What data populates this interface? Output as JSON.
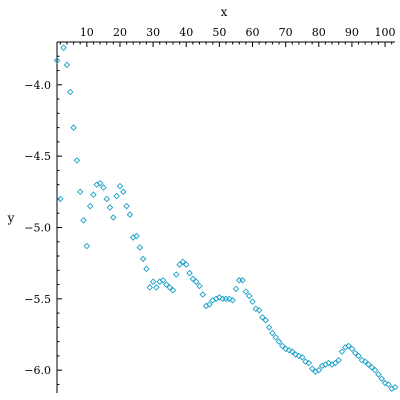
{
  "chart_data": {
    "type": "scatter",
    "xlabel": "x",
    "ylabel": "y",
    "xlim": [
      1,
      103
    ],
    "ylim": [
      -6.16,
      -3.7
    ],
    "x_ticks": [
      10,
      20,
      30,
      40,
      50,
      60,
      70,
      80,
      90,
      100
    ],
    "y_ticks": [
      -4.0,
      -4.5,
      -5.0,
      -5.5,
      -6.0
    ],
    "marker": "diamond",
    "series": [
      {
        "color": "#1aa0c8",
        "x": [
          1,
          2,
          3,
          4,
          5,
          6,
          7,
          8,
          9,
          10,
          11,
          12,
          13,
          14,
          15,
          16,
          17,
          18,
          19,
          20,
          21,
          22,
          23,
          24,
          25,
          26,
          27,
          28,
          29,
          30,
          31,
          32,
          33,
          34,
          35,
          36,
          37,
          38,
          39,
          40,
          41,
          42,
          43,
          44,
          45,
          46,
          47,
          48,
          49,
          50,
          51,
          52,
          53,
          54,
          55,
          56,
          57,
          58,
          59,
          60,
          61,
          62,
          63,
          64,
          65,
          66,
          67,
          68,
          69,
          70,
          71,
          72,
          73,
          74,
          75,
          76,
          77,
          78,
          79,
          80,
          81,
          82,
          83,
          84,
          85,
          86,
          87,
          88,
          89,
          90,
          91,
          92,
          93,
          94,
          95,
          96,
          97,
          98,
          99,
          100,
          101,
          102,
          103
        ],
        "y": [
          -3.83,
          -4.8,
          -3.74,
          -3.86,
          -4.05,
          -4.3,
          -4.53,
          -4.75,
          -4.95,
          -5.13,
          -4.85,
          -4.77,
          -4.7,
          -4.69,
          -4.72,
          -4.8,
          -4.86,
          -4.93,
          -4.78,
          -4.71,
          -4.75,
          -4.85,
          -4.91,
          -5.07,
          -5.06,
          -5.14,
          -5.22,
          -5.29,
          -5.42,
          -5.38,
          -5.42,
          -5.38,
          -5.37,
          -5.4,
          -5.42,
          -5.44,
          -5.33,
          -5.26,
          -5.24,
          -5.26,
          -5.32,
          -5.36,
          -5.38,
          -5.41,
          -5.47,
          -5.55,
          -5.54,
          -5.51,
          -5.5,
          -5.49,
          -5.5,
          -5.5,
          -5.5,
          -5.51,
          -5.43,
          -5.37,
          -5.37,
          -5.45,
          -5.48,
          -5.52,
          -5.57,
          -5.58,
          -5.63,
          -5.65,
          -5.7,
          -5.74,
          -5.77,
          -5.8,
          -5.83,
          -5.85,
          -5.86,
          -5.87,
          -5.89,
          -5.9,
          -5.91,
          -5.94,
          -5.95,
          -5.99,
          -6.01,
          -6.0,
          -5.97,
          -5.96,
          -5.95,
          -5.96,
          -5.95,
          -5.93,
          -5.87,
          -5.84,
          -5.83,
          -5.85,
          -5.88,
          -5.9,
          -5.93,
          -5.94,
          -5.96,
          -5.98,
          -6.0,
          -6.03,
          -6.06,
          -6.09,
          -6.1,
          -6.13,
          -6.12
        ]
      }
    ]
  }
}
